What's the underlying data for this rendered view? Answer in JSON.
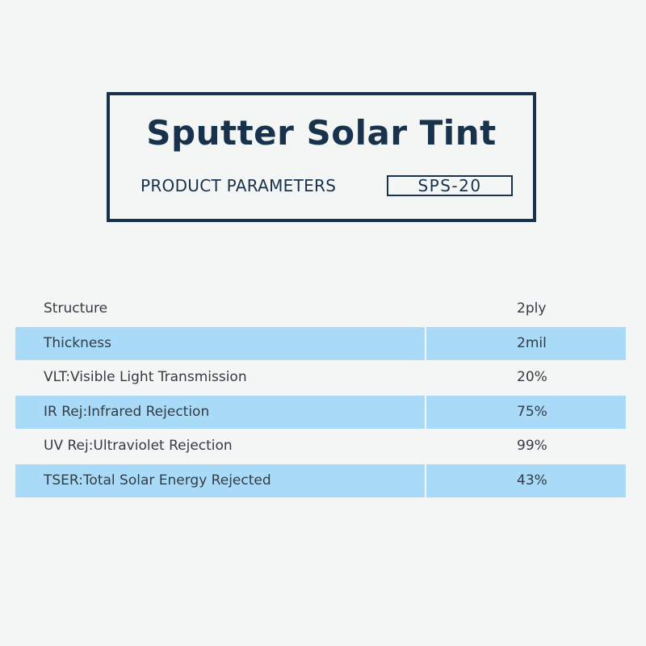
{
  "header": {
    "title": "Sputter Solar Tint",
    "subtitle": "PRODUCT PARAMETERS",
    "model": "SPS-20"
  },
  "parameters": [
    {
      "label": "Structure",
      "value": "2ply",
      "shaded": false
    },
    {
      "label": "Thickness",
      "value": "2mil",
      "shaded": true
    },
    {
      "label": "VLT:Visible Light Transmission",
      "value": "20%",
      "shaded": false
    },
    {
      "label": "IR Rej:Infrared Rejection",
      "value": "75%",
      "shaded": true
    },
    {
      "label": "UV Rej:Ultraviolet Rejection",
      "value": "99%",
      "shaded": false
    },
    {
      "label": "TSER:Total Solar Energy Rejected",
      "value": "43%",
      "shaded": true
    }
  ],
  "colors": {
    "title_navy": "#17324a",
    "row_highlight": "#a9daf7",
    "background": "#f4f5f5",
    "text": "#333c44"
  }
}
